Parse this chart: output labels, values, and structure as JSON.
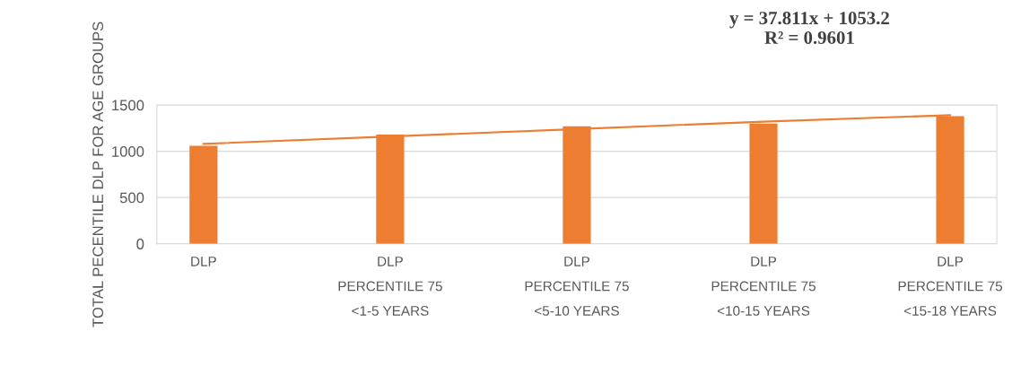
{
  "chart_data": {
    "type": "bar",
    "categories": [
      "DLP",
      "DLP\nPERCENTILE 75\n<1-5 YEARS",
      "DLP\nPERCENTILE 75\n<5-10 YEARS",
      "DLP\nPERCENTILE 75\n<10-15 YEARS",
      "DLP\nPERCENTILE 75\n<15-18 YEARS"
    ],
    "series": [
      {
        "color": "#ed7d31",
        "values": [
          1060,
          1180,
          1270,
          1300,
          1380
        ]
      },
      {
        "type": "line",
        "color": "#ed7d31",
        "values": [
          1080,
          1160,
          1240,
          1320,
          1390
        ]
      }
    ],
    "ylabel": "TOTAL PECENTILE DLP FOR AGE GROUPS",
    "annotations": [
      "y = 37.811x + 1053.2\nR² = 0.9601"
    ],
    "ylim": [
      0,
      1500
    ],
    "yticks": [
      0,
      500,
      1000,
      1500
    ],
    "grid": "y",
    "legend": false
  }
}
